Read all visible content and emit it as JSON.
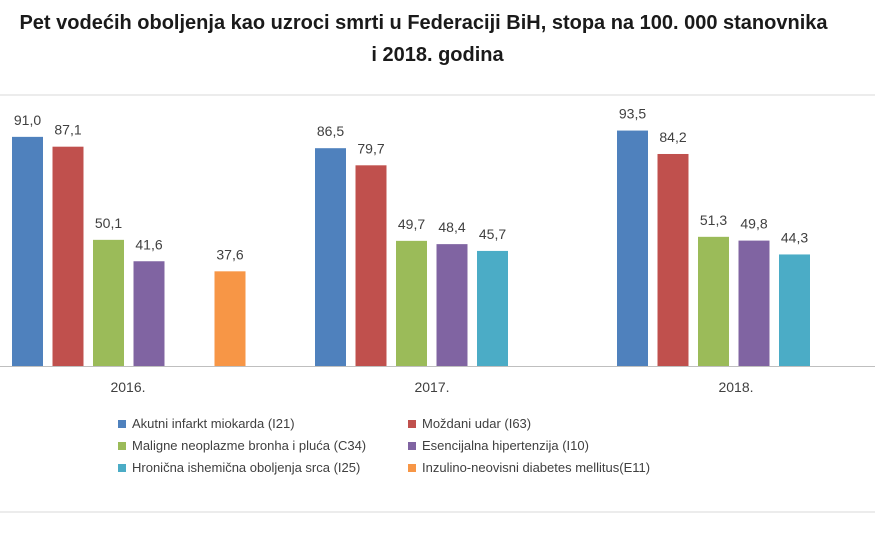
{
  "chart_data": {
    "type": "bar",
    "title_lines": [
      "Pet vodećih oboljenja kao uzroci smrti u Federaciji BiH, stopa na 100. 000 stanovnika",
      "i 2018. godina"
    ],
    "categories": [
      "2016.",
      "2017.",
      "2018."
    ],
    "series": [
      {
        "name": "Akutni infarkt miokarda (I21)",
        "color": "#4f81bd",
        "values": [
          91.0,
          86.5,
          93.5
        ],
        "labels": [
          "91,0",
          "86,5",
          "93,5"
        ]
      },
      {
        "name": "Moždani udar (I63)",
        "color": "#c0504d",
        "values": [
          87.1,
          79.7,
          84.2
        ],
        "labels": [
          "87,1",
          "79,7",
          "84,2"
        ]
      },
      {
        "name": "Maligne neoplazme bronha i pluća (C34)",
        "color": "#9bbb59",
        "values": [
          50.1,
          49.7,
          51.3
        ],
        "labels": [
          "50,1",
          "49,7",
          "51,3"
        ]
      },
      {
        "name": "Esencijalna hipertenzija (I10)",
        "color": "#8064a2",
        "values": [
          41.6,
          48.4,
          49.8
        ],
        "labels": [
          "41,6",
          "48,4",
          "49,8"
        ]
      },
      {
        "name": "Hronična ishemična oboljenja srca (I25)",
        "color": "#4bacc6",
        "values": [
          null,
          45.7,
          44.3
        ],
        "labels": [
          "",
          "45,7",
          "44,3"
        ]
      },
      {
        "name": "Inzulino-neovisni diabetes mellitus(E11)",
        "color": "#f79646",
        "values": [
          37.6,
          null,
          null
        ],
        "labels": [
          "37,6",
          "",
          ""
        ]
      }
    ],
    "xlabel": "",
    "ylabel": "",
    "ylim": [
      0,
      100
    ],
    "legend_position": "bottom"
  }
}
